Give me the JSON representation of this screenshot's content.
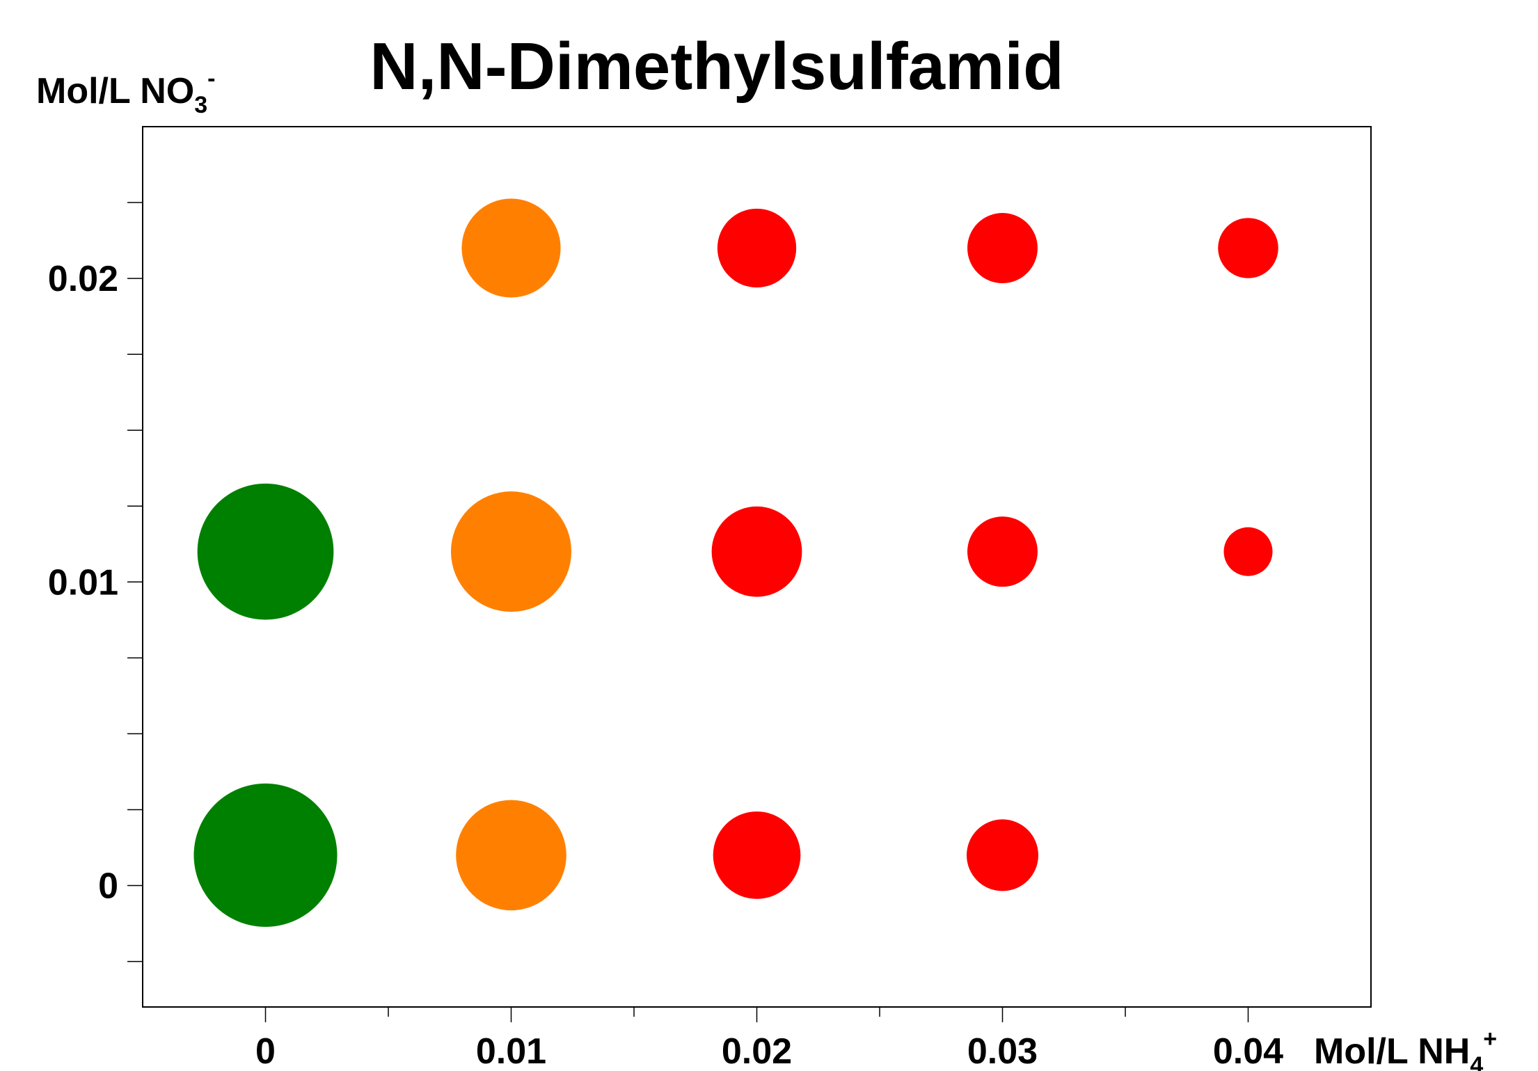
{
  "chart_data": {
    "type": "scatter",
    "title": "N,N-Dimethylsulfamid",
    "xlabel": {
      "main": "Mol/L NH",
      "sub": "4",
      "sup": "+"
    },
    "ylabel": {
      "main": "Mol/L NO",
      "sub": "3",
      "sup": "-"
    },
    "x_ticks": [
      "0",
      "0.01",
      "0.02",
      "0.03",
      "0.04"
    ],
    "y_ticks": [
      "0",
      "0.01",
      "0.02"
    ],
    "xlim": [
      -0.005,
      0.045
    ],
    "ylim": [
      -0.004,
      0.025
    ],
    "grid": false,
    "colors": {
      "green": "#008000",
      "orange": "#FF8000",
      "red": "#FF0000"
    },
    "points": [
      {
        "x": 0,
        "y": 0.001,
        "size": 1.0,
        "color": "#008000"
      },
      {
        "x": 0.01,
        "y": 0.001,
        "size": 0.77,
        "color": "#FF8000"
      },
      {
        "x": 0.02,
        "y": 0.001,
        "size": 0.61,
        "color": "#FF0000"
      },
      {
        "x": 0.03,
        "y": 0.001,
        "size": 0.5,
        "color": "#FF0000"
      },
      {
        "x": 0,
        "y": 0.011,
        "size": 0.95,
        "color": "#008000"
      },
      {
        "x": 0.01,
        "y": 0.011,
        "size": 0.84,
        "color": "#FF8000"
      },
      {
        "x": 0.02,
        "y": 0.011,
        "size": 0.63,
        "color": "#FF0000"
      },
      {
        "x": 0.03,
        "y": 0.011,
        "size": 0.49,
        "color": "#FF0000"
      },
      {
        "x": 0.04,
        "y": 0.011,
        "size": 0.34,
        "color": "#FF0000"
      },
      {
        "x": 0.01,
        "y": 0.021,
        "size": 0.69,
        "color": "#FF8000"
      },
      {
        "x": 0.02,
        "y": 0.021,
        "size": 0.55,
        "color": "#FF0000"
      },
      {
        "x": 0.03,
        "y": 0.021,
        "size": 0.49,
        "color": "#FF0000"
      },
      {
        "x": 0.04,
        "y": 0.021,
        "size": 0.42,
        "color": "#FF0000"
      }
    ]
  }
}
